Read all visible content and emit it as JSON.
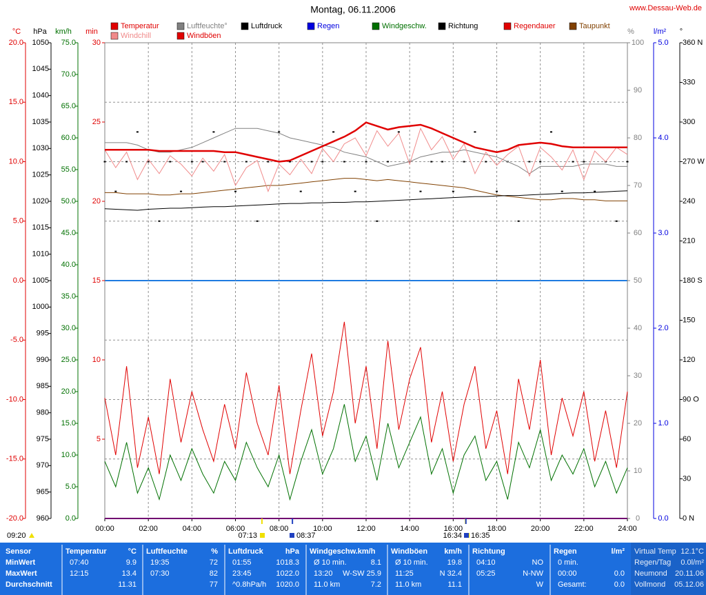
{
  "chart_data": {
    "type": "line",
    "title": "Montag, 06.11.2006",
    "source": "www.Dessau-Web.de",
    "x": [
      0,
      0.5,
      1,
      1.5,
      2,
      2.5,
      3,
      3.5,
      4,
      4.5,
      5,
      5.5,
      6,
      6.5,
      7,
      7.5,
      8,
      8.5,
      9,
      9.5,
      10,
      10.5,
      11,
      11.5,
      12,
      12.5,
      13,
      13.5,
      14,
      14.5,
      15,
      15.5,
      16,
      16.5,
      17,
      17.5,
      18,
      18.5,
      19,
      19.5,
      20,
      20.5,
      21,
      21.5,
      22,
      22.5,
      23,
      23.5,
      24
    ],
    "xlim": [
      0,
      24
    ],
    "xticks": [
      {
        "value": 0,
        "label": "00:00"
      },
      {
        "value": 2,
        "label": "02:00"
      },
      {
        "value": 4,
        "label": "04:00"
      },
      {
        "value": 6,
        "label": "06:00"
      },
      {
        "value": 8,
        "label": "08:00"
      },
      {
        "value": 10,
        "label": "10:00"
      },
      {
        "value": 12,
        "label": "12:00"
      },
      {
        "value": 14,
        "label": "14:00"
      },
      {
        "value": 16,
        "label": "16:00"
      },
      {
        "value": 18,
        "label": "18:00"
      },
      {
        "value": 20,
        "label": "20:00"
      },
      {
        "value": 22,
        "label": "22:00"
      },
      {
        "value": 24,
        "label": "24:00"
      }
    ],
    "grid": true,
    "axes": [
      {
        "label": "°C",
        "color": "#e00000",
        "ylim": [
          -20,
          20
        ],
        "yticks": [
          {
            "value": -20,
            "label": "-20.0"
          },
          {
            "value": -15,
            "label": "-15.0"
          },
          {
            "value": -10,
            "label": "-10.0"
          },
          {
            "value": -5,
            "label": "-5.0"
          },
          {
            "value": 0,
            "label": "0.0"
          },
          {
            "value": 5,
            "label": "5.0"
          },
          {
            "value": 10,
            "label": "10.0"
          },
          {
            "value": 15,
            "label": "15.0"
          },
          {
            "value": 20,
            "label": "20.0"
          }
        ]
      },
      {
        "label": "hPa",
        "color": "#000000",
        "ylim": [
          960,
          1050
        ],
        "yticks": [
          960,
          965,
          970,
          975,
          980,
          985,
          990,
          995,
          1000,
          1005,
          1010,
          1015,
          1020,
          1025,
          1030,
          1035,
          1040,
          1045,
          1050
        ]
      },
      {
        "label": "km/h",
        "color": "#007000",
        "ylim": [
          0,
          75
        ],
        "yticks": [
          {
            "value": 0,
            "label": "0.0"
          },
          {
            "value": 5,
            "label": "5.0"
          },
          {
            "value": 10,
            "label": "10.0"
          },
          {
            "value": 15,
            "label": "15.0"
          },
          {
            "value": 20,
            "label": "20.0"
          },
          {
            "value": 25,
            "label": "25.0"
          },
          {
            "value": 30,
            "label": "30.0"
          },
          {
            "value": 35,
            "label": "35.0"
          },
          {
            "value": 40,
            "label": "40.0"
          },
          {
            "value": 45,
            "label": "45.0"
          },
          {
            "value": 50,
            "label": "50.0"
          },
          {
            "value": 55,
            "label": "55.0"
          },
          {
            "value": 60,
            "label": "60.0"
          },
          {
            "value": 65,
            "label": "65.0"
          },
          {
            "value": 70,
            "label": "70.0"
          },
          {
            "value": 75,
            "label": "75.0"
          }
        ]
      },
      {
        "label": "min",
        "color": "#e00000",
        "ylim": [
          0,
          30
        ],
        "yticks": [
          5,
          10,
          15,
          20,
          25,
          30
        ]
      },
      {
        "label": "%",
        "color": "#808080",
        "ylim": [
          0,
          100
        ],
        "yticks": [
          0,
          10,
          20,
          30,
          40,
          50,
          60,
          70,
          80,
          90,
          100
        ]
      },
      {
        "label": "l/m²",
        "color": "#0000e0",
        "ylim": [
          0,
          5
        ],
        "yticks": [
          {
            "value": 0,
            "label": "0.0"
          },
          {
            "value": 1,
            "label": "1.0"
          },
          {
            "value": 2,
            "label": "2.0"
          },
          {
            "value": 3,
            "label": "3.0"
          },
          {
            "value": 4,
            "label": "4.0"
          },
          {
            "value": 5,
            "label": "5.0"
          }
        ]
      },
      {
        "label": "°",
        "color": "#000000",
        "ylim": [
          0,
          360
        ],
        "yticks": [
          {
            "value": 0,
            "label": "0 N"
          },
          30,
          60,
          {
            "value": 90,
            "label": "90 O"
          },
          120,
          150,
          {
            "value": 180,
            "label": "180 S"
          },
          210,
          240,
          {
            "value": 270,
            "label": "270 W"
          },
          300,
          330,
          {
            "value": 360,
            "label": "360 N"
          }
        ]
      }
    ],
    "series": [
      {
        "name": "Temperatur",
        "color": "#e00000",
        "axis": 0,
        "style": "line",
        "values": [
          11.0,
          11.0,
          11.0,
          11.0,
          11.0,
          10.9,
          10.9,
          10.9,
          10.9,
          10.9,
          10.9,
          10.8,
          10.8,
          10.6,
          10.4,
          10.2,
          10.0,
          10.1,
          10.5,
          10.9,
          11.3,
          11.7,
          12.1,
          12.6,
          13.3,
          13.0,
          12.7,
          12.9,
          13.0,
          13.1,
          12.8,
          12.4,
          12.0,
          11.6,
          11.2,
          11.0,
          10.8,
          11.0,
          11.4,
          11.5,
          11.6,
          11.5,
          11.3,
          11.2,
          11.2,
          11.2,
          11.2,
          11.2,
          11.2
        ]
      },
      {
        "name": "Windchill",
        "color": "#f08a8a",
        "axis": 0,
        "style": "line",
        "values": [
          11.0,
          9.5,
          10.8,
          8.5,
          10.2,
          9.0,
          10.5,
          9.8,
          8.8,
          10.3,
          9.2,
          10.6,
          8.0,
          9.5,
          10.1,
          7.5,
          9.8,
          8.9,
          10.2,
          9.0,
          11.1,
          10.0,
          11.5,
          12.0,
          10.5,
          12.6,
          11.3,
          12.4,
          9.8,
          12.8,
          11.0,
          12.1,
          10.2,
          11.5,
          9.0,
          10.8,
          9.7,
          10.6,
          11.3,
          8.8,
          11.2,
          10.4,
          9.3,
          11.0,
          8.5,
          10.9,
          10.0,
          11.2,
          10.6
        ]
      },
      {
        "name": "Luftfeuchte°",
        "color": "#808080",
        "axis": 4,
        "style": "line",
        "values": [
          79,
          79,
          79,
          78.5,
          77.5,
          77,
          77,
          77.5,
          78,
          79,
          80,
          81,
          82,
          82,
          82,
          81.5,
          81,
          80,
          79.5,
          79,
          78.5,
          78,
          77,
          76.5,
          76,
          75,
          74,
          74.5,
          75,
          76,
          76.5,
          77,
          77,
          77.5,
          77,
          76.5,
          76,
          75,
          74,
          72.5,
          74,
          74,
          74,
          74,
          74.5,
          74.5,
          74.5,
          74,
          74
        ]
      },
      {
        "name": "Windböen",
        "color": "#e00000",
        "axis": 2,
        "style": "line",
        "values": [
          19,
          10,
          24,
          8,
          16,
          7,
          22,
          12,
          20,
          14,
          9,
          18,
          11,
          23,
          15,
          10,
          21,
          7,
          17,
          26,
          13,
          20,
          31,
          15,
          24,
          11,
          28,
          14,
          22,
          27,
          12,
          20,
          9,
          18,
          24,
          11,
          17,
          7,
          22,
          14,
          25,
          10,
          19,
          13,
          20,
          9,
          17,
          8,
          20
        ]
      },
      {
        "name": "Luftdruck",
        "color": "#000000",
        "axis": 1,
        "style": "line",
        "values": [
          1018.6,
          1018.5,
          1018.4,
          1018.3,
          1018.5,
          1018.6,
          1018.7,
          1018.7,
          1018.8,
          1018.9,
          1019.0,
          1019.0,
          1019.1,
          1019.2,
          1019.3,
          1019.4,
          1019.5,
          1019.6,
          1019.6,
          1019.7,
          1019.7,
          1019.8,
          1019.8,
          1019.9,
          1019.9,
          1020.0,
          1020.1,
          1020.2,
          1020.3,
          1020.4,
          1020.5,
          1020.6,
          1020.7,
          1020.8,
          1020.9,
          1020.9,
          1021.0,
          1021.1,
          1021.1,
          1021.2,
          1021.3,
          1021.4,
          1021.5,
          1021.6,
          1021.6,
          1021.7,
          1021.8,
          1021.9,
          1022.0
        ]
      },
      {
        "name": "Regen",
        "color": "#0000e0",
        "axis": 5,
        "style": "line",
        "values": [
          0,
          0,
          0,
          0,
          0,
          0,
          0,
          0,
          0,
          0,
          0,
          0,
          0,
          0,
          0,
          0,
          0,
          0,
          0,
          0,
          0,
          0,
          0,
          0,
          0,
          0,
          0,
          0,
          0,
          0,
          0,
          0,
          0,
          0,
          0,
          0,
          0,
          0,
          0,
          0,
          0,
          0,
          0,
          0,
          0,
          0,
          0,
          0,
          0
        ]
      },
      {
        "name": "Windgeschw.",
        "color": "#007000",
        "axis": 2,
        "style": "line",
        "values": [
          9,
          5,
          12,
          4,
          8,
          3,
          10,
          6,
          11,
          7,
          4,
          9,
          6,
          12,
          8,
          5,
          10,
          3,
          9,
          14,
          7,
          11,
          18,
          9,
          13,
          6,
          15,
          8,
          12,
          16,
          7,
          11,
          4,
          10,
          13,
          6,
          9,
          3,
          12,
          8,
          14,
          6,
          10,
          7,
          11,
          5,
          9,
          4,
          8
        ]
      },
      {
        "name": "Richtung",
        "color": "#000000",
        "axis": 6,
        "style": "dots",
        "values": [
          270,
          247.5,
          270,
          292.5,
          270,
          225,
          270,
          247.5,
          270,
          270,
          292.5,
          270,
          247.5,
          270,
          225,
          270,
          292.5,
          270,
          247.5,
          270,
          270,
          292.5,
          270,
          247.5,
          270,
          225,
          270,
          292.5,
          270,
          247.5,
          270,
          270,
          247.5,
          270,
          292.5,
          270,
          247.5,
          270,
          225,
          270,
          270,
          292.5,
          247.5,
          270,
          270,
          247.5,
          270,
          225,
          270
        ]
      },
      {
        "name": "Regendauer",
        "color": "#e00000",
        "axis": 3,
        "style": "line",
        "values": [
          0,
          0,
          0,
          0,
          0,
          0,
          0,
          0,
          0,
          0,
          0,
          0,
          0,
          0,
          0,
          0,
          0,
          0,
          0,
          0,
          0,
          0,
          0,
          0,
          0,
          0,
          0,
          0,
          0,
          0,
          0,
          0,
          0,
          0,
          0,
          0,
          0,
          0,
          0,
          0,
          0,
          0,
          0,
          0,
          0,
          0,
          0,
          0,
          0
        ]
      },
      {
        "name": "Taupunkt",
        "color": "#804000",
        "axis": 0,
        "style": "line",
        "values": [
          7.4,
          7.4,
          7.3,
          7.3,
          7.3,
          7.2,
          7.2,
          7.3,
          7.3,
          7.4,
          7.5,
          7.6,
          7.7,
          7.8,
          7.9,
          8.0,
          8.0,
          8.1,
          8.2,
          8.3,
          8.4,
          8.5,
          8.6,
          8.6,
          8.5,
          8.4,
          8.5,
          8.4,
          8.3,
          8.2,
          8.1,
          8.0,
          7.9,
          7.8,
          7.6,
          7.4,
          7.2,
          7.1,
          7.0,
          6.9,
          6.8,
          6.8,
          6.9,
          6.9,
          6.8,
          6.8,
          6.7,
          6.7,
          6.7
        ]
      }
    ],
    "sun_row": [
      "09:20",
      "07:13",
      "08:37",
      "16:34",
      "16:35"
    ]
  },
  "stats": {
    "columns": [
      {
        "name": "Sensor"
      },
      {
        "name": "Temperatur",
        "unit": "°C"
      },
      {
        "name": "Luftfeuchte",
        "unit": "%"
      },
      {
        "name": "Luftdruck",
        "unit": "hPa"
      },
      {
        "name": "Windgeschw.km/h"
      },
      {
        "name": "Windböen",
        "unit": "km/h"
      },
      {
        "name": "Richtung"
      },
      {
        "name": "Regen",
        "unit": "l/m²"
      }
    ],
    "rows": [
      {
        "label": "MinWert",
        "cells": [
          {
            "left": "07:40",
            "right": "9.9"
          },
          {
            "left": "19:35",
            "right": "72"
          },
          {
            "left": "01:55",
            "right": "1018.3"
          },
          {
            "left": "Ø 10 min.",
            "right": "8.1"
          },
          {
            "left": "Ø 10 min.",
            "right": "19.8"
          },
          {
            "left": "04:10",
            "right": "NO"
          },
          {
            "left": "0 min."
          }
        ]
      },
      {
        "label": "MaxWert",
        "cells": [
          {
            "left": "12:15",
            "right": "13.4"
          },
          {
            "left": "07:30",
            "right": "82"
          },
          {
            "left": "23:45",
            "right": "1022.0"
          },
          {
            "left": "13:20",
            "right": "W-SW 25.9"
          },
          {
            "left": "11:25",
            "right": "N 32.4"
          },
          {
            "left": "05:25",
            "right": "N-NW"
          },
          {
            "left": "00:00",
            "right": "0.0"
          }
        ]
      },
      {
        "label": "Durchschnitt",
        "cells": [
          {
            "right": "11.31"
          },
          {
            "right": "77"
          },
          {
            "left": "^0.8hPa/h",
            "right": "1020.0"
          },
          {
            "left": "11.0 km",
            "right": "7.2"
          },
          {
            "left": "11.0 km",
            "right": "11.1"
          },
          {
            "right": "W"
          },
          {
            "left": "Gesamt:",
            "right": "0.0"
          }
        ]
      }
    ],
    "panel": [
      [
        "Virtual Temp",
        "12.1°C"
      ],
      [
        "Regen/Tag",
        "0.0l/m²"
      ],
      [
        "Neumond",
        "20.11.06"
      ],
      [
        "Vollmond",
        "05.12.06"
      ]
    ]
  }
}
